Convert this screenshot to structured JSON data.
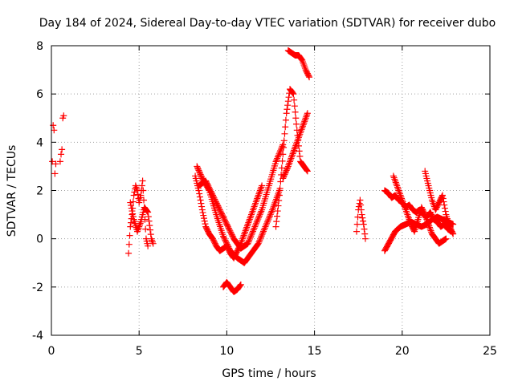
{
  "chart_data": {
    "type": "scatter",
    "title": "Day 184 of 2024, Sidereal Day-to-day VTEC variation (SDTVAR) for receiver dubo",
    "xlabel": "GPS time / hours",
    "ylabel": "SDTVAR / TECUs",
    "xlim": [
      0,
      25
    ],
    "ylim": [
      -4,
      8
    ],
    "x_ticks": [
      0,
      5,
      10,
      15,
      20,
      25
    ],
    "y_ticks": [
      -4,
      -2,
      0,
      2,
      4,
      6,
      8
    ],
    "grid": true,
    "marker": "+",
    "color": "#ff0000",
    "series": [
      {
        "name": "SDTVAR",
        "segments": [
          {
            "x": [
              0.05,
              0.1,
              0.15,
              0.2,
              0.25
            ],
            "y": [
              3.2,
              4.7,
              4.5,
              2.7,
              3.1
            ]
          },
          {
            "x": [
              0.5,
              0.55,
              0.6,
              0.65,
              0.7
            ],
            "y": [
              3.2,
              3.5,
              3.7,
              5.0,
              5.1
            ]
          },
          {
            "x": [
              4.4,
              4.5,
              4.6,
              4.7,
              4.8,
              4.9,
              5.0,
              5.1,
              5.2,
              5.3,
              5.4,
              5.5
            ],
            "y": [
              -0.6,
              0.5,
              1.0,
              1.8,
              2.2,
              2.0,
              1.5,
              1.8,
              2.4,
              1.2,
              0.0,
              -0.3
            ]
          },
          {
            "x": [
              4.5,
              4.7,
              4.9,
              5.1,
              5.3,
              5.5,
              5.7,
              5.8
            ],
            "y": [
              1.5,
              0.8,
              0.3,
              0.7,
              1.3,
              1.1,
              0.0,
              -0.2
            ]
          },
          {
            "x": [
              8.2,
              8.4,
              8.6,
              8.8,
              9.0,
              9.2,
              9.4,
              9.6,
              9.8,
              10.0,
              10.2,
              10.4,
              10.6,
              10.8,
              11.0,
              11.2,
              11.4,
              11.6,
              11.8,
              12.0
            ],
            "y": [
              2.6,
              2.0,
              1.2,
              0.5,
              0.2,
              0.0,
              -0.3,
              -0.5,
              -0.4,
              -0.3,
              -0.6,
              -0.8,
              -0.5,
              -0.2,
              0.2,
              0.6,
              1.0,
              1.4,
              1.8,
              2.2
            ]
          },
          {
            "x": [
              8.3,
              8.6,
              9.0,
              9.4,
              9.8,
              10.2,
              10.6,
              11.0,
              11.4,
              11.8,
              12.2,
              12.6,
              13.0
            ],
            "y": [
              3.0,
              2.5,
              2.0,
              1.0,
              0.1,
              -0.5,
              -0.8,
              -1.0,
              -0.6,
              -0.2,
              0.5,
              1.2,
              2.0
            ]
          },
          {
            "x": [
              8.4,
              8.8,
              9.2,
              9.6,
              10.0,
              10.4,
              10.8,
              11.2,
              11.6,
              12.0,
              12.4,
              12.8,
              13.2
            ],
            "y": [
              2.2,
              2.4,
              1.8,
              1.2,
              0.6,
              0.0,
              -0.4,
              -0.2,
              0.5,
              1.2,
              2.2,
              3.2,
              3.9
            ]
          },
          {
            "x": [
              9.8,
              10.0,
              10.2,
              10.4,
              10.6,
              10.8
            ],
            "y": [
              -2.0,
              -1.8,
              -2.0,
              -2.2,
              -2.1,
              -1.9
            ]
          },
          {
            "x": [
              12.8,
              13.0,
              13.2,
              13.4,
              13.6,
              13.8,
              14.0,
              14.2,
              14.4,
              14.6
            ],
            "y": [
              0.5,
              1.8,
              3.5,
              5.2,
              6.2,
              6.0,
              4.5,
              3.2,
              3.0,
              2.8
            ]
          },
          {
            "x": [
              13.5,
              13.7,
              13.9,
              14.1,
              14.3,
              14.5,
              14.7
            ],
            "y": [
              7.8,
              7.7,
              7.6,
              7.6,
              7.4,
              7.0,
              6.7
            ]
          },
          {
            "x": [
              13.2,
              13.5,
              13.8,
              14.1,
              14.4,
              14.6
            ],
            "y": [
              2.5,
              3.0,
              3.6,
              4.2,
              4.8,
              5.2
            ]
          },
          {
            "x": [
              17.4,
              17.5,
              17.6,
              17.7,
              17.8,
              17.9
            ],
            "y": [
              0.3,
              1.2,
              1.6,
              1.0,
              0.6,
              0.0
            ]
          },
          {
            "x": [
              19.0,
              19.2,
              19.4,
              19.6,
              19.8,
              20.0,
              20.2,
              20.4,
              20.6,
              20.8,
              21.0,
              21.2,
              21.4,
              21.6,
              21.8,
              22.0,
              22.2,
              22.4,
              22.6,
              22.8
            ],
            "y": [
              2.0,
              1.9,
              1.7,
              1.8,
              1.6,
              1.5,
              1.3,
              1.4,
              1.2,
              1.1,
              1.2,
              1.0,
              0.9,
              1.1,
              0.8,
              0.7,
              0.5,
              0.6,
              0.4,
              0.3
            ]
          },
          {
            "x": [
              19.0,
              19.3,
              19.6,
              19.9,
              20.2,
              20.5,
              20.8,
              21.1,
              21.4,
              21.7,
              22.0,
              22.3,
              22.6,
              22.9
            ],
            "y": [
              -0.5,
              -0.1,
              0.3,
              0.5,
              0.6,
              0.7,
              0.6,
              0.5,
              0.6,
              0.8,
              0.9,
              0.8,
              0.7,
              0.6
            ]
          },
          {
            "x": [
              19.5,
              19.7,
              19.9,
              20.1,
              20.3,
              20.5,
              20.7,
              20.9,
              21.1,
              21.3,
              21.5,
              21.7,
              21.9,
              22.1,
              22.3,
              22.5
            ],
            "y": [
              2.6,
              2.2,
              1.8,
              1.4,
              1.0,
              0.6,
              0.3,
              0.8,
              1.3,
              1.0,
              0.6,
              0.2,
              0.0,
              -0.2,
              -0.1,
              0.0
            ]
          },
          {
            "x": [
              21.3,
              21.5,
              21.7,
              21.9,
              22.1,
              22.3,
              22.5,
              22.7,
              22.9
            ],
            "y": [
              2.8,
              2.2,
              1.6,
              1.2,
              1.5,
              1.8,
              1.0,
              0.5,
              0.2
            ]
          }
        ]
      }
    ]
  }
}
